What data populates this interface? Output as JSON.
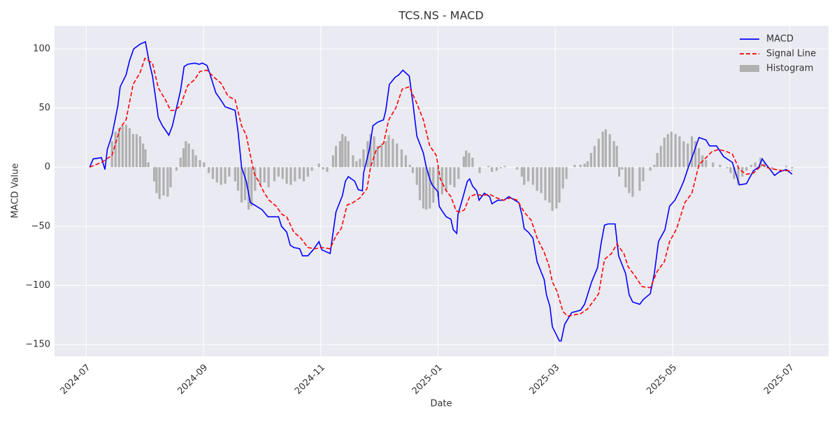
{
  "chart_data": {
    "type": "line",
    "title": "TCS.NS - MACD",
    "xlabel": "Date",
    "ylabel": "MACD Value",
    "xlim": [
      -0.54,
      12.66
    ],
    "ylim": [
      -160,
      119.5
    ],
    "xticks": [
      {
        "value": 0,
        "label": "2024-07"
      },
      {
        "value": 2,
        "label": "2024-09"
      },
      {
        "value": 4,
        "label": "2024-11"
      },
      {
        "value": 6,
        "label": "2025-01"
      },
      {
        "value": 8,
        "label": "2025-03"
      },
      {
        "value": 10,
        "label": "2025-05"
      },
      {
        "value": 12,
        "label": "2025-07"
      }
    ],
    "yticks": [
      {
        "value": -150,
        "label": "−150"
      },
      {
        "value": -100,
        "label": "−100"
      },
      {
        "value": -50,
        "label": "−50"
      },
      0,
      50,
      100
    ],
    "grid": true,
    "legend": "upper right",
    "series": [
      {
        "name": "MACD",
        "type": "line",
        "color": "#0000ff",
        "linestyle": "solid",
        "x": [
          0.06,
          0.12,
          0.26,
          0.32,
          0.36,
          0.44,
          0.54,
          0.58,
          0.68,
          0.74,
          0.81,
          0.92,
          1.01,
          1.07,
          1.13,
          1.18,
          1.23,
          1.3,
          1.37,
          1.41,
          1.47,
          1.54,
          1.61,
          1.67,
          1.73,
          1.85,
          1.93,
          1.98,
          2.06,
          2.11,
          2.21,
          2.32,
          2.37,
          2.54,
          2.59,
          2.65,
          2.73,
          2.8,
          2.87,
          3.0,
          3.1,
          3.21,
          3.28,
          3.33,
          3.42,
          3.48,
          3.54,
          3.64,
          3.69,
          3.78,
          3.87,
          3.97,
          4.02,
          4.16,
          4.26,
          4.37,
          4.42,
          4.47,
          4.58,
          4.64,
          4.71,
          4.73,
          4.83,
          4.89,
          4.97,
          5.07,
          5.11,
          5.17,
          5.27,
          5.33,
          5.4,
          5.51,
          5.57,
          5.64,
          5.75,
          5.8,
          5.86,
          5.9,
          6.0,
          6.02,
          6.07,
          6.14,
          6.22,
          6.26,
          6.32,
          6.34,
          6.4,
          6.5,
          6.54,
          6.59,
          6.66,
          6.7,
          6.79,
          6.88,
          6.92,
          7.02,
          7.12,
          7.21,
          7.31,
          7.38,
          7.43,
          7.47,
          7.54,
          7.62,
          7.69,
          7.81,
          7.85,
          7.91,
          7.95,
          8.07,
          8.1,
          8.16,
          8.28,
          8.43,
          8.5,
          8.62,
          8.72,
          8.78,
          8.84,
          8.9,
          9.02,
          9.08,
          9.2,
          9.26,
          9.32,
          9.44,
          9.5,
          9.62,
          9.69,
          9.76,
          9.87,
          9.95,
          10.04,
          10.12,
          10.19,
          10.27,
          10.36,
          10.45,
          10.57,
          10.63,
          10.75,
          10.87,
          11.02,
          11.14,
          11.26,
          11.38,
          11.47,
          11.53,
          11.6,
          11.68,
          11.74,
          11.82,
          11.94,
          12.04
        ],
        "values": [
          0,
          7,
          8,
          -2,
          15,
          27,
          52,
          68,
          78,
          90,
          100,
          104,
          106,
          90,
          77,
          60,
          42,
          35,
          30,
          27,
          35,
          50,
          65,
          85,
          87,
          88,
          87,
          88,
          86,
          79,
          63,
          55,
          51,
          48,
          30,
          0,
          -12,
          -30,
          -32,
          -36,
          -42,
          -42,
          -42,
          -50,
          -55,
          -66,
          -68,
          -69,
          -75,
          -75,
          -70,
          -63,
          -70,
          -73,
          -38,
          -24,
          -12,
          -8,
          -12,
          -19,
          -20,
          -5,
          15,
          35,
          38,
          40,
          48,
          70,
          76,
          78,
          82,
          77,
          55,
          26,
          12,
          0,
          -10,
          -15,
          -21,
          -33,
          -37,
          -42,
          -44,
          -53,
          -56,
          -40,
          -30,
          -12,
          -10,
          -16,
          -20,
          -28,
          -22,
          -25,
          -31,
          -28,
          -28,
          -25,
          -28,
          -30,
          -40,
          -52,
          -55,
          -60,
          -80,
          -95,
          -108,
          -118,
          -135,
          -147,
          -147,
          -133,
          -123,
          -121,
          -116,
          -97,
          -85,
          -65,
          -49,
          -48,
          -48,
          -75,
          -90,
          -108,
          -114,
          -116,
          -112,
          -107,
          -90,
          -63,
          -53,
          -33,
          -28,
          -20,
          -12,
          0,
          12,
          25,
          23,
          18,
          18,
          9,
          4,
          -15,
          -14,
          -3,
          0,
          7,
          2,
          -3,
          -7,
          -4,
          -2,
          -6
        ]
      },
      {
        "name": "Signal Line",
        "type": "line",
        "color": "#ff0000",
        "linestyle": "dashed",
        "x": [
          0.06,
          0.26,
          0.44,
          0.58,
          0.68,
          0.8,
          0.92,
          1.0,
          1.13,
          1.23,
          1.35,
          1.44,
          1.51,
          1.61,
          1.73,
          1.85,
          1.94,
          2.06,
          2.18,
          2.3,
          2.42,
          2.54,
          2.65,
          2.73,
          2.8,
          2.87,
          2.94,
          3.04,
          3.12,
          3.24,
          3.34,
          3.42,
          3.54,
          3.66,
          3.78,
          3.9,
          4.02,
          4.16,
          4.26,
          4.35,
          4.45,
          4.55,
          4.67,
          4.79,
          4.85,
          4.95,
          5.07,
          5.16,
          5.28,
          5.39,
          5.51,
          5.63,
          5.75,
          5.86,
          5.97,
          6.04,
          6.14,
          6.22,
          6.31,
          6.38,
          6.45,
          6.54,
          6.64,
          6.76,
          6.88,
          7.0,
          7.12,
          7.23,
          7.35,
          7.47,
          7.59,
          7.69,
          7.81,
          7.89,
          7.95,
          8.03,
          8.13,
          8.21,
          8.31,
          8.43,
          8.55,
          8.67,
          8.74,
          8.84,
          8.96,
          9.05,
          9.17,
          9.24,
          9.36,
          9.48,
          9.62,
          9.74,
          9.86,
          9.95,
          10.07,
          10.21,
          10.33,
          10.45,
          10.55,
          10.67,
          10.79,
          10.93,
          11.02,
          11.14,
          11.26,
          11.38,
          11.53,
          11.64,
          11.76,
          11.88,
          12.04
        ],
        "values": [
          0,
          4,
          10,
          33,
          40,
          70,
          80,
          92,
          88,
          67,
          57,
          48,
          48,
          52,
          69,
          74,
          81,
          82,
          76,
          71,
          60,
          57,
          35,
          27,
          10,
          -6,
          -12,
          -22,
          -28,
          -33,
          -40,
          -42,
          -55,
          -60,
          -68,
          -69,
          -68,
          -69,
          -58,
          -52,
          -32,
          -30,
          -26,
          -18,
          0,
          15,
          20,
          40,
          50,
          66,
          68,
          55,
          40,
          18,
          10,
          -10,
          -20,
          -25,
          -37,
          -38,
          -36,
          -25,
          -23,
          -24,
          -23,
          -26,
          -28,
          -26,
          -28,
          -38,
          -45,
          -60,
          -72,
          -83,
          -97,
          -105,
          -122,
          -126,
          -125,
          -124,
          -120,
          -112,
          -107,
          -78,
          -73,
          -65,
          -73,
          -84,
          -92,
          -101,
          -102,
          -88,
          -80,
          -63,
          -52,
          -30,
          -22,
          2,
          7,
          13,
          15,
          13,
          11,
          -2,
          -6,
          -5,
          2,
          -1,
          -2,
          -3,
          -3
        ]
      },
      {
        "name": "Histogram",
        "type": "bar",
        "color": "#b0b0b0",
        "x": [
          0.44,
          0.5,
          0.56,
          0.62,
          0.68,
          0.74,
          0.8,
          0.86,
          0.92,
          0.97,
          1.01,
          1.06,
          1.16,
          1.2,
          1.25,
          1.32,
          1.39,
          1.44,
          1.54,
          1.61,
          1.66,
          1.7,
          1.75,
          1.82,
          1.87,
          1.94,
          2.01,
          2.09,
          2.16,
          2.23,
          2.3,
          2.37,
          2.44,
          2.54,
          2.59,
          2.65,
          2.71,
          2.77,
          2.82,
          2.88,
          2.97,
          3.04,
          3.11,
          3.21,
          3.28,
          3.35,
          3.42,
          3.49,
          3.56,
          3.64,
          3.71,
          3.78,
          3.85,
          3.92,
          3.97,
          4.04,
          4.11,
          4.21,
          4.26,
          4.33,
          4.37,
          4.42,
          4.47,
          4.55,
          4.61,
          4.67,
          4.73,
          4.8,
          4.85,
          4.91,
          4.97,
          5.04,
          5.11,
          5.16,
          5.23,
          5.3,
          5.38,
          5.45,
          5.52,
          5.57,
          5.64,
          5.69,
          5.75,
          5.8,
          5.86,
          5.92,
          6.0,
          6.07,
          6.14,
          6.21,
          6.28,
          6.35,
          6.44,
          6.48,
          6.53,
          6.59,
          6.66,
          6.71,
          6.78,
          6.86,
          6.92,
          7.0,
          7.07,
          7.14,
          7.23,
          7.35,
          7.43,
          7.47,
          7.54,
          7.62,
          7.69,
          7.76,
          7.83,
          7.9,
          7.95,
          8.02,
          8.07,
          8.13,
          8.19,
          8.26,
          8.33,
          8.43,
          8.5,
          8.55,
          8.61,
          8.67,
          8.74,
          8.81,
          8.86,
          8.93,
          9.0,
          9.05,
          9.09,
          9.14,
          9.2,
          9.26,
          9.32,
          9.44,
          9.5,
          9.62,
          9.69,
          9.74,
          9.8,
          9.86,
          9.92,
          9.98,
          10.05,
          10.12,
          10.19,
          10.26,
          10.33,
          10.39,
          10.45,
          10.51,
          10.57,
          10.69,
          10.81,
          10.93,
          10.99,
          11.05,
          11.12,
          11.19,
          11.26,
          11.34,
          11.41,
          11.5,
          11.57,
          11.64,
          11.7,
          11.82,
          11.94,
          12.04
        ],
        "values": [
          22,
          30,
          33,
          35,
          36,
          33,
          28,
          28,
          26,
          20,
          15,
          4,
          -12,
          -22,
          -27,
          -24,
          -25,
          -17,
          -3,
          8,
          16,
          22,
          20,
          15,
          10,
          6,
          4,
          -5,
          -10,
          -13,
          -15,
          -14,
          -8,
          -12,
          -20,
          -30,
          -28,
          -36,
          -33,
          -20,
          -15,
          -13,
          -17,
          -12,
          -8,
          -10,
          -14,
          -15,
          -12,
          -10,
          -12,
          -8,
          -3,
          0,
          3,
          -2,
          -4,
          10,
          18,
          22,
          28,
          26,
          22,
          10,
          5,
          7,
          15,
          22,
          28,
          26,
          18,
          20,
          22,
          27,
          24,
          20,
          15,
          10,
          2,
          -5,
          -15,
          -28,
          -35,
          -36,
          -35,
          -30,
          -25,
          -23,
          -20,
          -15,
          -17,
          -10,
          9,
          14,
          12,
          8,
          0,
          -5,
          0,
          1,
          -4,
          -3,
          -1,
          1,
          0,
          -2,
          -8,
          -15,
          -12,
          -15,
          -20,
          -22,
          -28,
          -30,
          -37,
          -35,
          -30,
          -18,
          -10,
          0,
          2,
          2,
          3,
          5,
          12,
          18,
          24,
          30,
          32,
          28,
          22,
          18,
          -8,
          -2,
          -17,
          -22,
          -25,
          -20,
          -12,
          -3,
          2,
          12,
          18,
          25,
          28,
          30,
          28,
          26,
          22,
          20,
          26,
          22,
          16,
          10,
          6,
          4,
          2,
          -1,
          -5,
          -10,
          -15,
          -8,
          -3,
          2,
          4,
          8,
          4,
          0,
          -2,
          0,
          1,
          -1
        ]
      }
    ]
  }
}
